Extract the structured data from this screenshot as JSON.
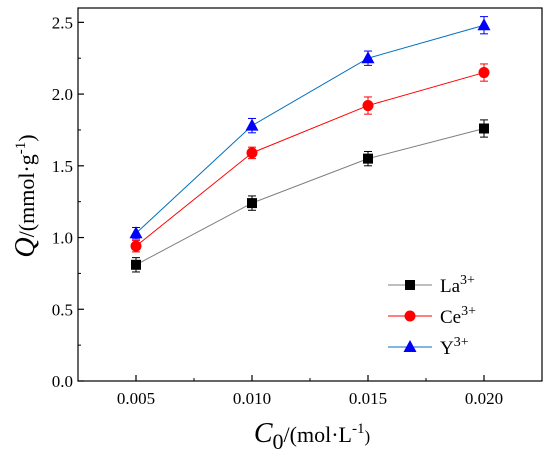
{
  "chart_data": {
    "type": "line",
    "x": [
      0.005,
      0.01,
      0.015,
      0.02
    ],
    "x_tick_labels": [
      "0.005",
      "0.010",
      "0.015",
      "0.020"
    ],
    "xlim": [
      0.0025,
      0.0225
    ],
    "ylim": [
      0.0,
      2.6
    ],
    "y_ticks": [
      0.0,
      0.5,
      1.0,
      1.5,
      2.0,
      2.5
    ],
    "y_tick_labels": [
      "0.0",
      "0.5",
      "1.0",
      "1.5",
      "2.0",
      "2.5"
    ],
    "xlabel": {
      "main": "C",
      "sub": "0",
      "unit_pre": "/(mol·L",
      "unit_sup": "-1",
      "unit_post": ")"
    },
    "ylabel": {
      "main": "Q",
      "unit_pre": "/(mmol·g",
      "unit_sup": "-1",
      "unit_post": ")"
    },
    "grid": false,
    "legend_position": "bottom-right",
    "series": [
      {
        "name": "La",
        "name_sup": "3+",
        "marker": "square",
        "color": "#000000",
        "line_color": "#7f7f7f",
        "values": [
          0.81,
          1.24,
          1.55,
          1.76
        ],
        "errors": [
          0.05,
          0.05,
          0.05,
          0.06
        ]
      },
      {
        "name": "Ce",
        "name_sup": "3+",
        "marker": "circle",
        "color": "#ff0000",
        "line_color": "#ff0000",
        "values": [
          0.94,
          1.59,
          1.92,
          2.15
        ],
        "errors": [
          0.04,
          0.04,
          0.06,
          0.06
        ]
      },
      {
        "name": "Y",
        "name_sup": "3+",
        "marker": "triangle",
        "color": "#0000ff",
        "line_color": "#0070c0",
        "values": [
          1.03,
          1.78,
          2.25,
          2.48
        ],
        "errors": [
          0.04,
          0.05,
          0.05,
          0.06
        ]
      }
    ]
  }
}
